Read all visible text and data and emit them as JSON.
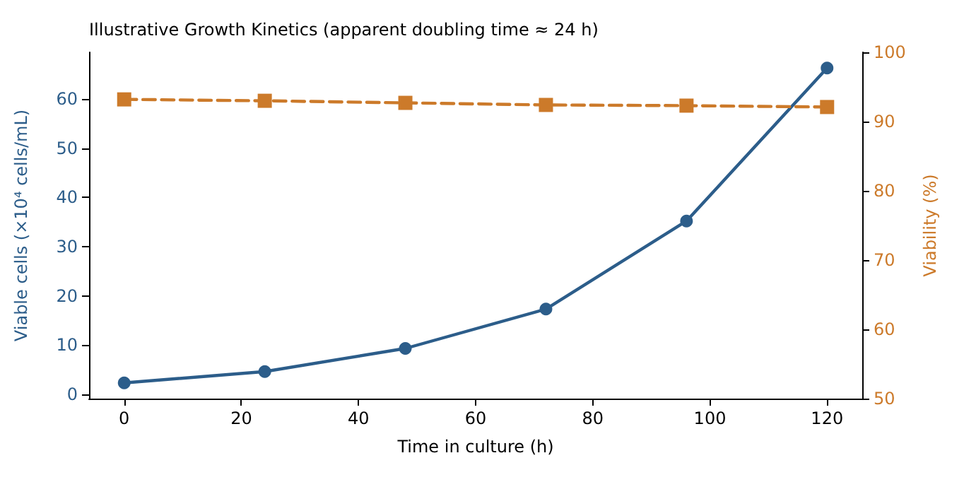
{
  "chart_data": {
    "type": "line",
    "title": "Illustrative Growth Kinetics (apparent doubling time ≈ 24 h)",
    "xlabel": "Time in culture (h)",
    "ylabel": "Viable cells (×10⁴ cells/mL)",
    "y2label": "Viability (%)",
    "x": [
      0,
      24,
      48,
      72,
      96,
      120
    ],
    "series": [
      {
        "color": "#2c5d8a",
        "marker": "circle",
        "line_style": "solid",
        "values": [
          2.3,
          4.6,
          9.3,
          17.3,
          35.2,
          66.3
        ]
      },
      {
        "color": "#cc7a2a",
        "marker": "square",
        "line_style": "dashed",
        "axis": "y2",
        "values": [
          93.2,
          93.0,
          92.7,
          92.4,
          92.3,
          92.1
        ]
      }
    ],
    "xlim": [
      -6,
      126
    ],
    "xticks": [
      0,
      20,
      40,
      60,
      80,
      100,
      120
    ],
    "ylim": [
      -0.9,
      69.5
    ],
    "yticks": [
      0,
      10,
      20,
      30,
      40,
      50,
      60
    ],
    "y2lim": [
      50,
      100
    ],
    "y2ticks": [
      50,
      60,
      70,
      80,
      90,
      100
    ]
  }
}
